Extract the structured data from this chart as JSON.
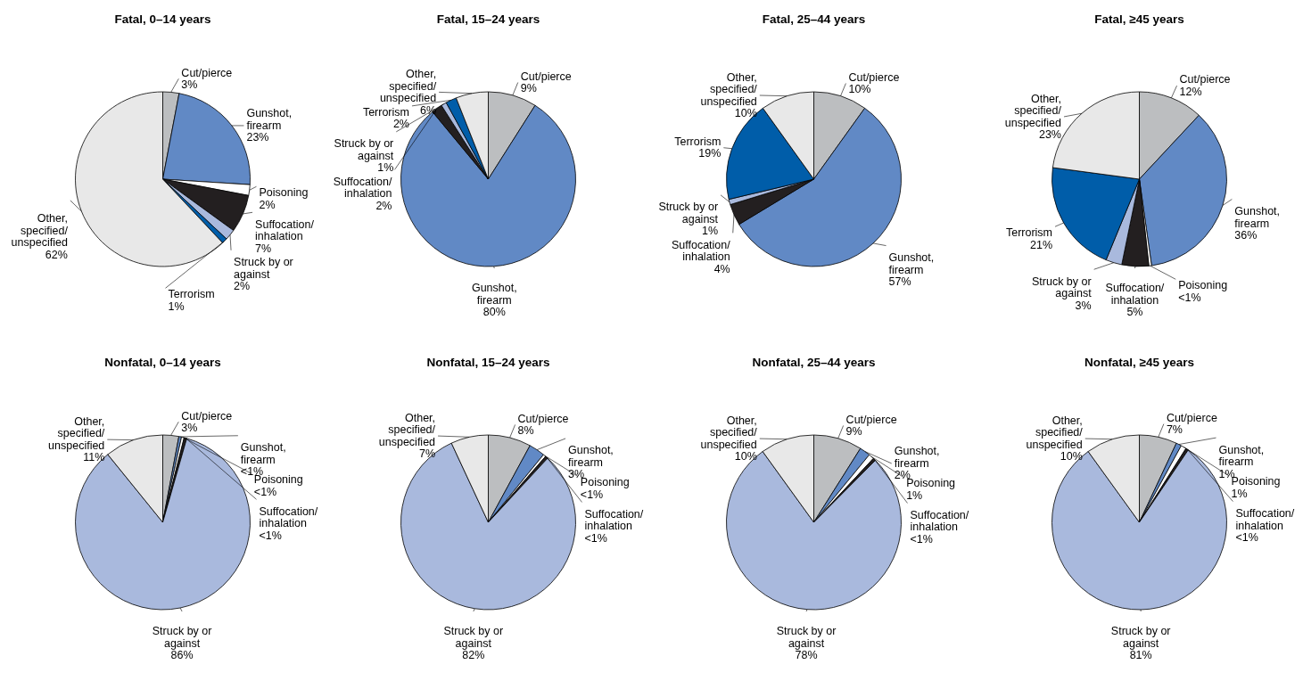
{
  "chart_data": [
    {
      "type": "pie",
      "title": "Fatal, 0–14 years",
      "categories": [
        "Cut/pierce",
        "Gunshot, firearm",
        "Poisoning",
        "Suffocation/inhalation",
        "Struck by or against",
        "Terrorism",
        "Other, specified/unspecified"
      ],
      "values": [
        3,
        23,
        2,
        7,
        2,
        1,
        62
      ],
      "colors": [
        "#bcbec0",
        "#6189c5",
        "#ffffff",
        "#231f20",
        "#a9b9dd",
        "#005da9",
        "#e8e8e8"
      ],
      "value_labels": [
        "3%",
        "23%",
        "2%",
        "7%",
        "2%",
        "1%",
        "62%"
      ]
    },
    {
      "type": "pie",
      "title": "Fatal, 15–24 years",
      "categories": [
        "Cut/pierce",
        "Gunshot, firearm",
        "Suffocation/inhalation",
        "Struck by or against",
        "Terrorism",
        "Other, specified/unspecified"
      ],
      "values": [
        9,
        80,
        2,
        1,
        2,
        6
      ],
      "colors": [
        "#bcbec0",
        "#6189c5",
        "#231f20",
        "#a9b9dd",
        "#005da9",
        "#e8e8e8"
      ],
      "value_labels": [
        "9%",
        "80%",
        "2%",
        "1%",
        "2%",
        "6%"
      ]
    },
    {
      "type": "pie",
      "title": "Fatal, 25–44 years",
      "categories": [
        "Cut/pierce",
        "Gunshot, firearm",
        "Suffocation/inhalation",
        "Struck by or against",
        "Terrorism",
        "Other, specified/unspecified"
      ],
      "values": [
        10,
        57,
        4,
        1,
        19,
        10
      ],
      "colors": [
        "#bcbec0",
        "#6189c5",
        "#231f20",
        "#a9b9dd",
        "#005da9",
        "#e8e8e8"
      ],
      "value_labels": [
        "10%",
        "57%",
        "4%",
        "1%",
        "19%",
        "10%"
      ]
    },
    {
      "type": "pie",
      "title": "Fatal, ≥45 years",
      "categories": [
        "Cut/pierce",
        "Gunshot, firearm",
        "Poisoning",
        "Suffocation/inhalation",
        "Struck by or against",
        "Terrorism",
        "Other, specified/unspecified"
      ],
      "values": [
        12,
        36,
        0.5,
        5,
        3,
        21,
        23
      ],
      "colors": [
        "#bcbec0",
        "#6189c5",
        "#ffffff",
        "#231f20",
        "#a9b9dd",
        "#005da9",
        "#e8e8e8"
      ],
      "value_labels": [
        "12%",
        "36%",
        "<1%",
        "5%",
        "3%",
        "21%",
        "23%"
      ]
    },
    {
      "type": "pie",
      "title": "Nonfatal, 0–14 years",
      "categories": [
        "Cut/pierce",
        "Gunshot, firearm",
        "Poisoning",
        "Suffocation/inhalation",
        "Struck by or against",
        "Other, specified/unspecified"
      ],
      "values": [
        3,
        0.5,
        0.5,
        0.5,
        86,
        11
      ],
      "colors": [
        "#bcbec0",
        "#6189c5",
        "#ffffff",
        "#231f20",
        "#a9b9dd",
        "#e8e8e8"
      ],
      "value_labels": [
        "3%",
        "<1%",
        "<1%",
        "<1%",
        "86%",
        "11%"
      ]
    },
    {
      "type": "pie",
      "title": "Nonfatal, 15–24 years",
      "categories": [
        "Cut/pierce",
        "Gunshot, firearm",
        "Poisoning",
        "Suffocation/inhalation",
        "Struck by or against",
        "Other, specified/unspecified"
      ],
      "values": [
        8,
        3,
        0.5,
        0.5,
        82,
        7
      ],
      "colors": [
        "#bcbec0",
        "#6189c5",
        "#ffffff",
        "#231f20",
        "#a9b9dd",
        "#e8e8e8"
      ],
      "value_labels": [
        "8%",
        "3%",
        "<1%",
        "<1%",
        "82%",
        "7%"
      ]
    },
    {
      "type": "pie",
      "title": "Nonfatal, 25–44 years",
      "categories": [
        "Cut/pierce",
        "Gunshot, firearm",
        "Poisoning",
        "Suffocation/inhalation",
        "Struck by or against",
        "Other, specified/unspecified"
      ],
      "values": [
        9,
        2,
        1,
        0.5,
        78,
        10
      ],
      "colors": [
        "#bcbec0",
        "#6189c5",
        "#ffffff",
        "#231f20",
        "#a9b9dd",
        "#e8e8e8"
      ],
      "value_labels": [
        "9%",
        "2%",
        "1%",
        "<1%",
        "78%",
        "10%"
      ]
    },
    {
      "type": "pie",
      "title": "Nonfatal, ≥45 years",
      "categories": [
        "Cut/pierce",
        "Gunshot, firearm",
        "Poisoning",
        "Suffocation/inhalation",
        "Struck by or against",
        "Other, specified/unspecified"
      ],
      "values": [
        7,
        1,
        1,
        0.5,
        81,
        10
      ],
      "colors": [
        "#bcbec0",
        "#6189c5",
        "#ffffff",
        "#231f20",
        "#a9b9dd",
        "#e8e8e8"
      ],
      "value_labels": [
        "7%",
        "1%",
        "1%",
        "<1%",
        "81%",
        "10%"
      ]
    }
  ]
}
